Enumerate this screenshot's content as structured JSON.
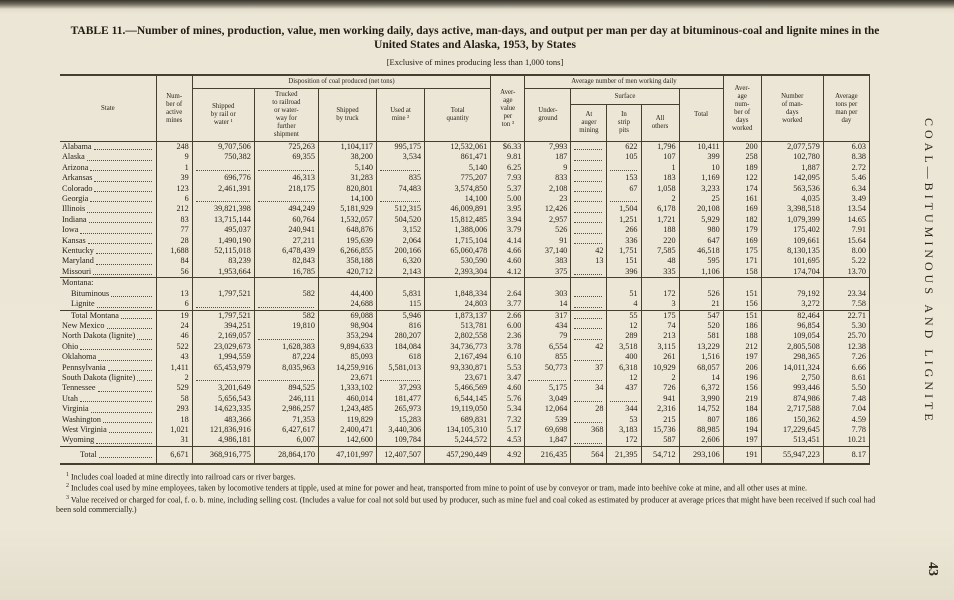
{
  "page": {
    "title": "TABLE 11.—Number of mines, production, value, men working daily, days active, man-days, and output per man per day at bituminous-coal and lignite mines in the United States and Alaska, 1953, by States",
    "subtitle": "[Exclusive of mines producing less than 1,000 tons]",
    "side_label": "COAL—BITUMINOUS AND LIGNITE",
    "page_number": "43"
  },
  "table": {
    "headers": {
      "state": "State",
      "mines": "Num-\nber of\nactive\nmines",
      "disposition_group": "Disposition of coal produced (net tons)",
      "rail": "Shipped\nby rail or\nwater ¹",
      "trucked": "Trucked\nto railroad\nor water-\nway for\nfurther\nshipment",
      "truck": "Shipped\nby truck",
      "used": "Used at\nmine ²",
      "total_qty": "Total\nquantity",
      "avg_value": "Aver-\nage\nvalue\nper\nton ³",
      "men_group": "Average number of men working daily",
      "underground": "Under-\nground",
      "surface_group": "Surface",
      "auger": "At\nauger\nmining",
      "strip": "In\nstrip\npits",
      "others": "All\nothers",
      "total_men": "Total",
      "days": "Aver-\nage\nnum-\nber of\ndays\nworked",
      "man_days": "Number\nof man-\ndays\nworked",
      "tons_per_man": "Average\ntons per\nman per\nday"
    },
    "rows": [
      {
        "cells": [
          "Alabama",
          "248",
          "9,707,506",
          "725,263",
          "1,104,117",
          "995,175",
          "12,532,061",
          "$6.33",
          "7,993",
          "",
          "622",
          "1,796",
          "10,411",
          "200",
          "2,077,579",
          "6.03"
        ]
      },
      {
        "cells": [
          "Alaska",
          "9",
          "750,382",
          "69,355",
          "38,200",
          "3,534",
          "861,471",
          "9.81",
          "187",
          "",
          "105",
          "107",
          "399",
          "258",
          "102,780",
          "8.38"
        ]
      },
      {
        "cells": [
          "Arizona",
          "1",
          "",
          "",
          "5,140",
          "",
          "5,140",
          "6.25",
          "9",
          "",
          "",
          "1",
          "10",
          "189",
          "1,887",
          "2.72"
        ]
      },
      {
        "cells": [
          "Arkansas",
          "39",
          "696,776",
          "46,313",
          "31,283",
          "835",
          "775,207",
          "7.93",
          "833",
          "",
          "153",
          "183",
          "1,169",
          "122",
          "142,095",
          "5.46"
        ]
      },
      {
        "cells": [
          "Colorado",
          "123",
          "2,461,391",
          "218,175",
          "820,801",
          "74,483",
          "3,574,850",
          "5.37",
          "2,108",
          "",
          "67",
          "1,058",
          "3,233",
          "174",
          "563,536",
          "6.34"
        ]
      },
      {
        "cells": [
          "Georgia",
          "6",
          "",
          "",
          "14,100",
          "",
          "14,100",
          "5.00",
          "23",
          "",
          "",
          "2",
          "25",
          "161",
          "4,035",
          "3.49"
        ]
      },
      {
        "cells": [
          "Illinois",
          "212",
          "39,821,398",
          "494,249",
          "5,181,929",
          "512,315",
          "46,009,891",
          "3.95",
          "12,426",
          "",
          "1,504",
          "6,178",
          "20,108",
          "169",
          "3,398,518",
          "13.54"
        ]
      },
      {
        "cells": [
          "Indiana",
          "83",
          "13,715,144",
          "60,764",
          "1,532,057",
          "504,520",
          "15,812,485",
          "3.94",
          "2,957",
          "",
          "1,251",
          "1,721",
          "5,929",
          "182",
          "1,079,399",
          "14.65"
        ]
      },
      {
        "cells": [
          "Iowa",
          "77",
          "495,037",
          "240,941",
          "648,876",
          "3,152",
          "1,388,006",
          "3.79",
          "526",
          "",
          "266",
          "188",
          "980",
          "179",
          "175,402",
          "7.91"
        ]
      },
      {
        "cells": [
          "Kansas",
          "28",
          "1,490,190",
          "27,211",
          "195,639",
          "2,064",
          "1,715,104",
          "4.14",
          "91",
          "",
          "336",
          "220",
          "647",
          "169",
          "109,661",
          "15.64"
        ]
      },
      {
        "cells": [
          "Kentucky",
          "1,688",
          "52,115,018",
          "6,478,439",
          "6,266,855",
          "200,166",
          "65,060,478",
          "4.66",
          "37,140",
          "42",
          "1,751",
          "7,585",
          "46,518",
          "175",
          "8,130,135",
          "8.00"
        ]
      },
      {
        "cells": [
          "Maryland",
          "84",
          "83,239",
          "82,843",
          "358,188",
          "6,320",
          "530,590",
          "4.60",
          "383",
          "13",
          "151",
          "48",
          "595",
          "171",
          "101,695",
          "5.22"
        ]
      },
      {
        "cells": [
          "Missouri",
          "56",
          "1,953,664",
          "16,785",
          "420,712",
          "2,143",
          "2,393,304",
          "4.12",
          "375",
          "",
          "396",
          "335",
          "1,106",
          "158",
          "174,704",
          "13.70"
        ]
      },
      {
        "cells": [
          "Montana:",
          "",
          "",
          "",
          "",
          "",
          "",
          "",
          "",
          "",
          "",
          "",
          "",
          "",
          "",
          ""
        ],
        "cls": "sep",
        "nodots": true
      },
      {
        "cells": [
          "Bituminous",
          "13",
          "1,797,521",
          "582",
          "44,400",
          "5,831",
          "1,848,334",
          "2.64",
          "303",
          "",
          "51",
          "172",
          "526",
          "151",
          "79,192",
          "23.34"
        ],
        "indent": 1
      },
      {
        "cells": [
          "Lignite",
          "6",
          "",
          "",
          "24,688",
          "115",
          "24,803",
          "3.77",
          "14",
          "",
          "4",
          "3",
          "21",
          "156",
          "3,272",
          "7.58"
        ],
        "indent": 1
      },
      {
        "cells": [
          "Total Montana",
          "19",
          "1,797,521",
          "582",
          "69,088",
          "5,946",
          "1,873,137",
          "2.66",
          "317",
          "",
          "55",
          "175",
          "547",
          "151",
          "82,464",
          "22.71"
        ],
        "cls": "sep",
        "indent": 1
      },
      {
        "cells": [
          "New Mexico",
          "24",
          "394,251",
          "19,810",
          "98,904",
          "816",
          "513,781",
          "6.00",
          "434",
          "",
          "12",
          "74",
          "520",
          "186",
          "96,854",
          "5.30"
        ]
      },
      {
        "cells": [
          "North Dakota (lignite)",
          "46",
          "2,169,057",
          "",
          "353,294",
          "280,207",
          "2,802,558",
          "2.36",
          "79",
          "",
          "289",
          "213",
          "581",
          "188",
          "109,054",
          "25.70"
        ]
      },
      {
        "cells": [
          "Ohio",
          "522",
          "23,029,673",
          "1,628,383",
          "9,894,633",
          "184,084",
          "34,736,773",
          "3.78",
          "6,554",
          "42",
          "3,518",
          "3,115",
          "13,229",
          "212",
          "2,805,508",
          "12.38"
        ]
      },
      {
        "cells": [
          "Oklahoma",
          "43",
          "1,994,559",
          "87,224",
          "85,093",
          "618",
          "2,167,494",
          "6.10",
          "855",
          "",
          "400",
          "261",
          "1,516",
          "197",
          "298,365",
          "7.26"
        ]
      },
      {
        "cells": [
          "Pennsylvania",
          "1,411",
          "65,453,979",
          "8,035,963",
          "14,259,916",
          "5,581,013",
          "93,330,871",
          "5.53",
          "50,773",
          "37",
          "6,318",
          "10,929",
          "68,057",
          "206",
          "14,011,324",
          "6.66"
        ]
      },
      {
        "cells": [
          "South Dakota (lignite)",
          "2",
          "",
          "",
          "23,671",
          "",
          "23,671",
          "3.47",
          "",
          "",
          "12",
          "2",
          "14",
          "196",
          "2,750",
          "8.61"
        ]
      },
      {
        "cells": [
          "Tennessee",
          "529",
          "3,201,649",
          "894,525",
          "1,333,102",
          "37,293",
          "5,466,569",
          "4.60",
          "5,175",
          "34",
          "437",
          "726",
          "6,372",
          "156",
          "993,446",
          "5.50"
        ]
      },
      {
        "cells": [
          "Utah",
          "58",
          "5,656,543",
          "246,111",
          "460,014",
          "181,477",
          "6,544,145",
          "5.76",
          "3,049",
          "",
          "",
          "941",
          "3,990",
          "219",
          "874,986",
          "7.48"
        ]
      },
      {
        "cells": [
          "Virginia",
          "293",
          "14,623,335",
          "2,986,257",
          "1,243,485",
          "265,973",
          "19,119,050",
          "5.34",
          "12,064",
          "28",
          "344",
          "2,316",
          "14,752",
          "184",
          "2,717,588",
          "7.04"
        ]
      },
      {
        "cells": [
          "Washington",
          "18",
          "483,366",
          "71,353",
          "119,829",
          "15,283",
          "689,831",
          "7.32",
          "539",
          "",
          "53",
          "215",
          "807",
          "186",
          "150,362",
          "4.59"
        ]
      },
      {
        "cells": [
          "West Virginia",
          "1,021",
          "121,836,916",
          "6,427,617",
          "2,400,471",
          "3,440,306",
          "134,105,310",
          "5.17",
          "69,698",
          "368",
          "3,183",
          "15,736",
          "88,985",
          "194",
          "17,229,645",
          "7.78"
        ]
      },
      {
        "cells": [
          "Wyoming",
          "31",
          "4,986,181",
          "6,007",
          "142,600",
          "109,784",
          "5,244,572",
          "4.53",
          "1,847",
          "",
          "172",
          "587",
          "2,606",
          "197",
          "513,451",
          "10.21"
        ]
      },
      {
        "cells": [
          "Total",
          "6,671",
          "368,916,775",
          "28,864,170",
          "47,101,997",
          "12,407,507",
          "457,290,449",
          "4.92",
          "216,435",
          "564",
          "21,395",
          "54,712",
          "293,106",
          "191",
          "55,947,223",
          "8.17"
        ],
        "cls": "sep total",
        "indent": 2
      }
    ]
  },
  "footnotes": [
    {
      "marker": "1",
      "text": "Includes coal loaded at mine directly into railroad cars or river barges."
    },
    {
      "marker": "2",
      "text": "Includes coal used by mine employees, taken by locomotive tenders at tipple, used at mine for power and heat, transported from mine to point of use by conveyor or tram, made into beehive coke at mine, and all other uses at mine."
    },
    {
      "marker": "3",
      "text": "Value received or charged for coal, f. o. b. mine, including selling cost.  (Includes a value for coal not sold but used by producer, such as mine fuel and coal coked as estimated by producer at average prices that might have been received if such coal had been sold commercially.)"
    }
  ]
}
